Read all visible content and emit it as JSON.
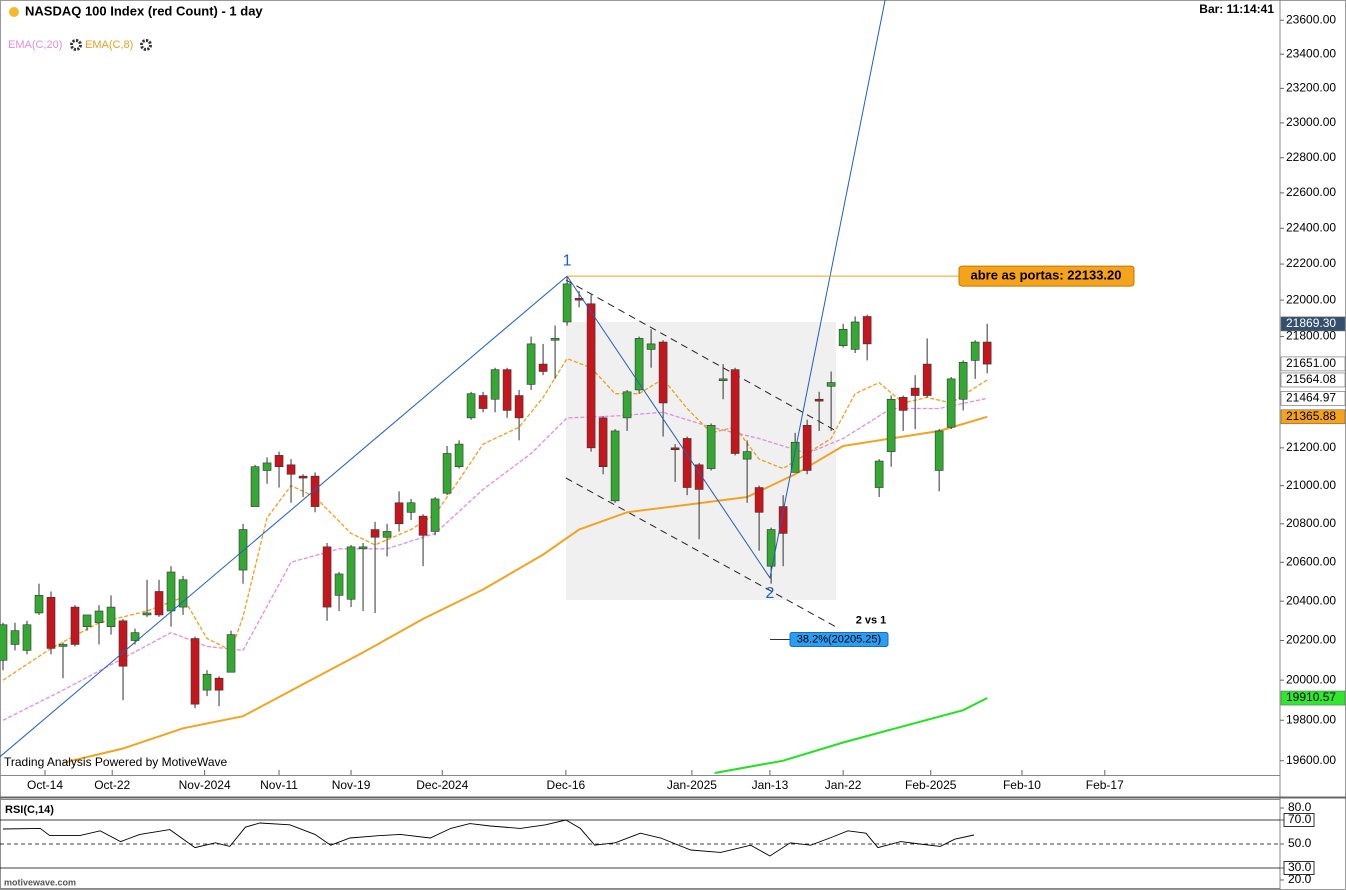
{
  "chart_data": {
    "type": "candlestick",
    "title": "NASDAQ 100 Index (red Count) - 1 day",
    "clock": "Bar: 11:14:41",
    "watermark": "Trading Analysis Powered by MotiveWave",
    "site": "motivewave.com",
    "log_scale": true,
    "colors": {
      "up": "#34a832",
      "down": "#c4161c"
    },
    "open": [
      20100,
      20180,
      20150,
      20340,
      20420,
      20170,
      20370,
      20270,
      20290,
      20270,
      20300,
      20200,
      20330,
      20450,
      20350,
      20370,
      20210,
      19950,
      20010,
      20040,
      20560,
      20890,
      21080,
      21160,
      21110,
      21050,
      21050,
      20680,
      20430,
      20410,
      20670,
      20770,
      20730,
      20910,
      20860,
      20840,
      20760,
      20960,
      21100,
      21360,
      21480,
      21460,
      21620,
      21480,
      21540,
      21650,
      21780,
      21880,
      22010,
      21980,
      21360,
      20920,
      21360,
      21510,
      21730,
      21770,
      21200,
      21250,
      21110,
      21090,
      21560,
      21620,
      21140,
      20990,
      20580,
      20890,
      21070,
      21320,
      21460,
      21530,
      21750,
      21730,
      21910,
      20990,
      21180,
      21470,
      21520,
      21650,
      21080,
      21310,
      21460,
      21670,
      21770
    ],
    "high": [
      20290,
      20290,
      20300,
      20490,
      20450,
      20190,
      20380,
      20330,
      20380,
      20430,
      20310,
      20260,
      20510,
      20510,
      20580,
      20530,
      20220,
      20050,
      20020,
      20250,
      20800,
      21110,
      21150,
      21180,
      21140,
      21060,
      21070,
      20700,
      20550,
      20690,
      20700,
      20810,
      20800,
      20970,
      20930,
      20850,
      20940,
      21210,
      21240,
      21500,
      21500,
      21630,
      21630,
      21510,
      21800,
      21760,
      21860,
      22130,
      22050,
      22030,
      21370,
      21300,
      21510,
      21800,
      21840,
      21780,
      21220,
      21260,
      21120,
      21330,
      21650,
      21630,
      21240,
      21000,
      20780,
      20950,
      21280,
      21350,
      21500,
      21610,
      21870,
      21910,
      21920,
      21140,
      21480,
      21480,
      21590,
      21790,
      21300,
      21580,
      21670,
      21780,
      21870
    ],
    "low": [
      20050,
      20150,
      20130,
      20330,
      20130,
      20010,
      20170,
      20250,
      20180,
      20230,
      19900,
      20180,
      20320,
      20320,
      20270,
      20330,
      19860,
      19920,
      19870,
      20040,
      20490,
      20890,
      21010,
      20990,
      20910,
      20940,
      20860,
      20300,
      20350,
      20370,
      20350,
      20340,
      20630,
      20760,
      20820,
      20580,
      20740,
      20950,
      21090,
      21350,
      21390,
      21390,
      21360,
      21240,
      21510,
      21590,
      21570,
      21860,
      21960,
      21180,
      21060,
      20910,
      21290,
      21490,
      21630,
      21260,
      21020,
      20950,
      20720,
      21080,
      21460,
      21160,
      20910,
      20660,
      20490,
      20580,
      21070,
      21060,
      21290,
      21290,
      21740,
      21710,
      21670,
      20940,
      21100,
      21290,
      21300,
      21470,
      20970,
      21300,
      21400,
      21570,
      21600
    ],
    "close": [
      20280,
      20250,
      20280,
      20430,
      20160,
      20180,
      20180,
      20330,
      20350,
      20370,
      20070,
      20240,
      20340,
      20330,
      20550,
      20510,
      19880,
      20030,
      19950,
      20230,
      20770,
      21100,
      21120,
      21100,
      21060,
      21040,
      20890,
      20370,
      20540,
      20680,
      20680,
      20730,
      20760,
      20800,
      20910,
      20740,
      20930,
      21170,
      21220,
      21490,
      21410,
      21620,
      21400,
      21360,
      21760,
      21610,
      21790,
      22090,
      22000,
      21200,
      21100,
      21290,
      21500,
      21790,
      21760,
      21440,
      21190,
      20990,
      20980,
      21320,
      21570,
      21170,
      21180,
      20860,
      20770,
      20750,
      21230,
      21080,
      21450,
      21550,
      21840,
      21880,
      21760,
      21130,
      21460,
      21400,
      21480,
      21480,
      21290,
      21570,
      21660,
      21770,
      21650
    ],
    "xlim": [
      -0.25,
      106.4
    ],
    "xticks": [
      {
        "value": 3.5,
        "label": "Oct-14"
      },
      {
        "value": 9.1,
        "label": "Oct-22"
      },
      {
        "value": 16.8,
        "label": "Nov-2024"
      },
      {
        "value": 23,
        "label": "Nov-11"
      },
      {
        "value": 29,
        "label": "Nov-19"
      },
      {
        "value": 36.6,
        "label": "Dec-2024"
      },
      {
        "value": 46.9,
        "label": "Dec-16"
      },
      {
        "value": 57.4,
        "label": "Jan-2025"
      },
      {
        "value": 63.9,
        "label": "Jan-13"
      },
      {
        "value": 70,
        "label": "Jan-22"
      },
      {
        "value": 77.3,
        "label": "Feb-2025"
      },
      {
        "value": 84.9,
        "label": "Feb-10"
      },
      {
        "value": 91.8,
        "label": "Feb-17"
      }
    ],
    "ylim": [
      19530,
      23720
    ],
    "yticks": [
      {
        "value": 19600,
        "label": "19600.00"
      },
      {
        "value": 19800,
        "label": "19800.00"
      },
      {
        "value": 20000,
        "label": "20000.00"
      },
      {
        "value": 20200,
        "label": "20200.00"
      },
      {
        "value": 20400,
        "label": "20400.00"
      },
      {
        "value": 20600,
        "label": "20600.00"
      },
      {
        "value": 20800,
        "label": "20800.00"
      },
      {
        "value": 21000,
        "label": "21000.00"
      },
      {
        "value": 21200,
        "label": "21200.00"
      },
      {
        "value": 21800,
        "label": "21800.00"
      },
      {
        "value": 22000,
        "label": "22000.00"
      },
      {
        "value": 22200,
        "label": "22200.00"
      },
      {
        "value": 22400,
        "label": "22400.00"
      },
      {
        "value": 22600,
        "label": "22600.00"
      },
      {
        "value": 22800,
        "label": "22800.00"
      },
      {
        "value": 23000,
        "label": "23000.00"
      },
      {
        "value": 23200,
        "label": "23200.00"
      },
      {
        "value": 23400,
        "label": "23400.00"
      },
      {
        "value": 23600,
        "label": "23600.00"
      }
    ],
    "series": [
      {
        "name": "EMA(C,20)",
        "color": "#e08ee0",
        "dash": true,
        "x": [
          0,
          5,
          10,
          14,
          17,
          20,
          24,
          28,
          32,
          36,
          40,
          44,
          47,
          51,
          55,
          59,
          63,
          67,
          70,
          74,
          78,
          82
        ],
        "values": [
          19800,
          19950,
          20110,
          20240,
          20170,
          20150,
          20600,
          20670,
          20670,
          20750,
          20980,
          21170,
          21360,
          21370,
          21390,
          21310,
          21250,
          21170,
          21250,
          21410,
          21410,
          21464.97
        ]
      },
      {
        "name": "EMA(C,8)",
        "color": "#eea020",
        "dash": true,
        "x": [
          0,
          4,
          8,
          12,
          15,
          17,
          19,
          20,
          22,
          24,
          26,
          29,
          31,
          34,
          36,
          38,
          40,
          43,
          45,
          47,
          49,
          51,
          53,
          55,
          57,
          59,
          61,
          63,
          65,
          67,
          69,
          71,
          73,
          75,
          77,
          79,
          82
        ],
        "values": [
          20000,
          20160,
          20290,
          20350,
          20420,
          20210,
          20150,
          20320,
          20830,
          21000,
          20940,
          20750,
          20690,
          20770,
          20850,
          21030,
          21220,
          21310,
          21470,
          21680,
          21630,
          21490,
          21490,
          21570,
          21410,
          21280,
          21310,
          21140,
          21090,
          21170,
          21250,
          21490,
          21550,
          21440,
          21470,
          21440,
          21564.08
        ]
      },
      {
        "color": "#f0a424",
        "dash": false,
        "x": [
          5,
          10,
          15,
          20,
          25,
          30,
          35,
          40,
          45,
          48,
          52,
          57,
          62,
          66,
          70,
          74,
          78,
          82
        ],
        "values": [
          19590,
          19660,
          19760,
          19820,
          19980,
          20140,
          20310,
          20460,
          20640,
          20770,
          20860,
          20900,
          20940,
          21060,
          21210,
          21250,
          21290,
          21365.88
        ]
      },
      {
        "color": "#22e022",
        "dash": false,
        "x": [
          59.3,
          65,
          70,
          75,
          80,
          82
        ],
        "values": [
          19540,
          19600,
          19690,
          19770,
          19850,
          19910.57
        ]
      }
    ],
    "price_tags": [
      {
        "value": 21869.3,
        "label": "21869.30",
        "color": "#34506e",
        "text_color": "#ffffff"
      },
      {
        "value": 21651,
        "label": "21651.00",
        "color": "#ffffff"
      },
      {
        "value": 21564.08,
        "label": "21564.08",
        "color": "#ffffff"
      },
      {
        "value": 21464.97,
        "label": "21464.97",
        "color": "#ffffff"
      },
      {
        "value": 21365.88,
        "label": "21365.88",
        "color": "#f5a31a"
      },
      {
        "value": 19910.57,
        "label": "19910.57",
        "color": "#2ee82e"
      }
    ],
    "wave": {
      "color": "#1f5fbf",
      "x": [
        -0.25,
        47,
        63.9,
        73.5
      ],
      "values": [
        19620,
        22133.2,
        20520,
        23720
      ],
      "labels": [
        null,
        "1",
        "2",
        null
      ]
    },
    "resistance": {
      "value": 22133.2,
      "label": "abre as portas: 22133.20"
    },
    "fib": {
      "value": 20205.25,
      "label": "38.2%(20205.25)",
      "title": "2 vs 1"
    },
    "rsi": {
      "title": "RSI(C,14)",
      "x": [
        0,
        3.1,
        3.9,
        6.4,
        8.1,
        9.8,
        11.4,
        13.9,
        16,
        17.7,
        18.9,
        20.2,
        21.4,
        23.9,
        26,
        27.3,
        28.9,
        31.4,
        33.1,
        35.6,
        37.3,
        38.9,
        40.6,
        43.1,
        45.2,
        46.9,
        48.1,
        49.3,
        51,
        53.1,
        54.8,
        57.3,
        59.8,
        62.3,
        63.9,
        65.6,
        67.3,
        68.9,
        70.4,
        71.9,
        72.9,
        74.8,
        76.4,
        78.1,
        79.3,
        80.9
      ],
      "values": [
        62.5,
        63,
        57,
        57,
        61,
        52,
        58,
        62,
        47,
        51,
        48,
        64,
        67.5,
        66,
        58,
        49,
        55,
        57,
        58,
        55,
        63,
        67,
        65,
        63,
        66,
        70,
        63,
        49,
        51,
        59,
        55,
        45,
        43,
        49,
        40,
        51,
        49,
        55,
        61,
        59,
        47,
        52,
        50,
        48,
        54,
        57.5
      ],
      "ylim": [
        13.3,
        86.7
      ],
      "yticks": [
        {
          "value": 80,
          "label": "80.0"
        },
        {
          "value": 70,
          "label": "70.0"
        },
        {
          "value": 50,
          "label": "50.0"
        },
        {
          "value": 30,
          "label": "30.0"
        },
        {
          "value": 20,
          "label": "20.0"
        }
      ],
      "levels": [
        70,
        30
      ],
      "midline": 50
    }
  }
}
